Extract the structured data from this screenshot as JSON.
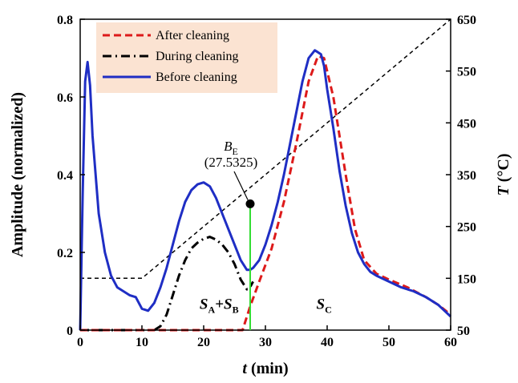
{
  "chart_data": {
    "type": "line",
    "title": "",
    "xlabel": {
      "var": "t",
      "unit": " (min)"
    },
    "ylabel": "Amplitude (normalized)",
    "y2label": {
      "var": "T",
      "unit": " (°C)"
    },
    "xlim": [
      0,
      60
    ],
    "ylim": [
      0,
      0.8
    ],
    "y2lim": [
      50,
      650
    ],
    "x_ticks": [
      "0",
      "10",
      "20",
      "30",
      "40",
      "50",
      "60"
    ],
    "y_ticks": [
      "0",
      "0.2",
      "0.4",
      "0.6",
      "0.8"
    ],
    "y2_ticks": [
      "50",
      "150",
      "250",
      "350",
      "450",
      "550",
      "650"
    ],
    "grid": false,
    "legend": {
      "position": "top-left",
      "entries": [
        "After cleaning",
        "During cleaning",
        "Before cleaning"
      ]
    },
    "colors": {
      "after": "#dd1a1a",
      "during": "#000000",
      "before": "#1f2ec4",
      "temp": "#000000",
      "marker_line": "#33dd33",
      "legend_bg": "#fbe3d2"
    },
    "series": [
      {
        "name": "After cleaning",
        "axis": "left",
        "style": "dashed",
        "x": [
          0,
          10,
          20,
          26.3,
          27.5,
          29,
          31,
          33,
          35,
          37,
          38.5,
          39.5,
          41,
          43,
          44.5,
          46,
          48,
          50,
          53,
          56,
          58,
          60
        ],
        "y": [
          0,
          0,
          0,
          0,
          0.06,
          0.125,
          0.21,
          0.33,
          0.48,
          0.64,
          0.705,
          0.7,
          0.6,
          0.4,
          0.26,
          0.18,
          0.145,
          0.13,
          0.11,
          0.085,
          0.065,
          0.04
        ]
      },
      {
        "name": "During cleaning",
        "axis": "left",
        "style": "dashdot",
        "x": [
          0,
          10,
          12,
          13,
          14,
          15,
          16,
          17,
          18,
          19,
          20,
          21,
          22,
          23,
          24,
          25,
          26,
          27,
          27.5,
          28
        ],
        "y": [
          0,
          0,
          0,
          0.01,
          0.04,
          0.09,
          0.14,
          0.18,
          0.21,
          0.225,
          0.235,
          0.24,
          0.233,
          0.22,
          0.2,
          0.17,
          0.13,
          0.105,
          0.11,
          0.125
        ]
      },
      {
        "name": "Before cleaning",
        "axis": "left",
        "style": "solid",
        "x": [
          0,
          0.4,
          0.8,
          1.2,
          1.6,
          2,
          3,
          4,
          5,
          6,
          7,
          8,
          9,
          10,
          11,
          12,
          13,
          14,
          15,
          16,
          17,
          18,
          19,
          20,
          21,
          22,
          23,
          24,
          25,
          26,
          27,
          27.5,
          28,
          29,
          30,
          31,
          32,
          33,
          34,
          35,
          36,
          37,
          38,
          38.5,
          39,
          39.5,
          40,
          41,
          42,
          43,
          44,
          45,
          46,
          47,
          48,
          50,
          52,
          54,
          56,
          58,
          59,
          60
        ],
        "y": [
          0,
          0.35,
          0.64,
          0.69,
          0.63,
          0.5,
          0.3,
          0.2,
          0.14,
          0.11,
          0.1,
          0.09,
          0.085,
          0.055,
          0.05,
          0.07,
          0.11,
          0.16,
          0.22,
          0.28,
          0.33,
          0.36,
          0.375,
          0.38,
          0.37,
          0.34,
          0.3,
          0.26,
          0.22,
          0.18,
          0.155,
          0.155,
          0.16,
          0.18,
          0.22,
          0.27,
          0.33,
          0.4,
          0.48,
          0.56,
          0.64,
          0.7,
          0.72,
          0.715,
          0.71,
          0.68,
          0.62,
          0.52,
          0.41,
          0.32,
          0.25,
          0.2,
          0.17,
          0.15,
          0.14,
          0.125,
          0.11,
          0.1,
          0.085,
          0.065,
          0.05,
          0.035
        ]
      },
      {
        "name": "T",
        "axis": "right",
        "style": "dashed-thin",
        "x": [
          0,
          10,
          60
        ],
        "y": [
          150,
          150,
          650
        ]
      }
    ],
    "annotations": {
      "be_label": {
        "main": "B",
        "sub": "E"
      },
      "be_value": "(27.5325)",
      "be_point": {
        "x": 27.5325,
        "y": 0.325
      },
      "region_left": {
        "parts": [
          {
            "t": "S",
            "sub": "A"
          },
          {
            "t": "+"
          },
          {
            "t": "S",
            "sub": "B"
          }
        ],
        "x": 22.5,
        "y": 0.055
      },
      "region_right": {
        "parts": [
          {
            "t": "S",
            "sub": "C"
          }
        ],
        "x": 39.5,
        "y": 0.055
      }
    }
  }
}
